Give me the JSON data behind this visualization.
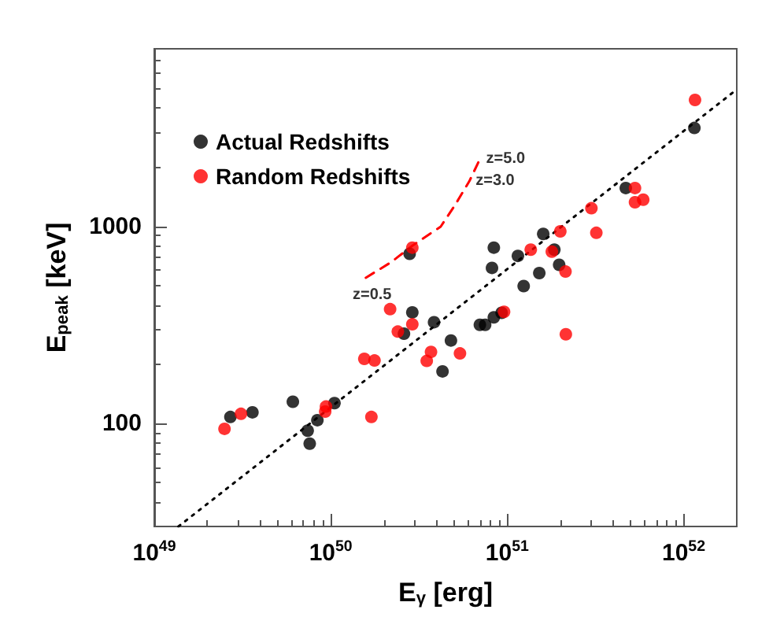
{
  "chart_data": {
    "type": "scatter",
    "xlabel": "E$_{γ}$ [erg]",
    "ylabel": "E$_{peak}$ [keV]",
    "log": "xy",
    "grid": false,
    "legend": "top left",
    "marker": "circle",
    "xlim": [
      1e+49,
      2e+52
    ],
    "ylim": [
      30,
      8000
    ],
    "xticks": [
      {
        "value": 1e+49,
        "label": "10$^{49}$"
      },
      {
        "value": 1e+50,
        "label": "10$^{50}$"
      },
      {
        "value": 1e+51,
        "label": "10$^{51}$"
      },
      {
        "value": 1e+52,
        "label": "10$^{52}$"
      }
    ],
    "yticks": [
      100,
      1000
    ],
    "annotations": [
      {
        "text": "z=0.5",
        "x": 1.58e+50,
        "y": 550
      },
      {
        "text": "z=3.0",
        "x": 6.1e+50,
        "y": 1700
      },
      {
        "text": "z=5.0",
        "x": 7e+50,
        "y": 2200
      }
    ],
    "series": [
      {
        "name": "Actual Redshifts",
        "color": "#000000",
        "x": [
          2.7e+49,
          3.6e+49,
          6.1e+49,
          8.4e+49,
          7.4e+49,
          7.6e+49,
          1.05e+50,
          2.9e+50,
          2.6e+50,
          3.85e+50,
          4.8e+50,
          4.3e+50,
          2.8e+50,
          1.15e+52,
          4.7e+51,
          1.6e+51,
          8.4e+50,
          8.2e+50,
          1.15e+51,
          1.85e+51,
          1.97e+51,
          1.52e+51,
          1.24e+51,
          7e+50,
          7.5e+50,
          8.4e+50,
          9.3e+50
        ],
        "values": [
          108,
          114,
          129,
          104,
          92,
          79,
          127,
          367,
          286,
          327,
          264,
          184,
          728,
          3170,
          1570,
          918,
          782,
          617,
          710,
          764,
          640,
          581,
          499,
          317,
          317,
          346,
          365
        ]
      },
      {
        "name": "Random Redshifts",
        "color": "#ff0000",
        "x": [
          2.5e+49,
          3.1e+49,
          9.4e+49,
          9.3e+49,
          1.7e+50,
          1.55e+50,
          1.77e+50,
          2.17e+50,
          2.4e+50,
          2.9e+50,
          3.7e+50,
          3.5e+50,
          5.4e+50,
          2.9e+50,
          1.16e+52,
          5.3e+51,
          5.3e+51,
          5.9e+51,
          3e+51,
          3.2e+51,
          2e+51,
          1.36e+51,
          1.79e+51,
          2.14e+51,
          9.6e+50,
          2.15e+51
        ],
        "values": [
          94,
          112,
          122,
          115,
          108,
          213,
          209,
          381,
          293,
          319,
          231,
          208,
          227,
          782,
          4400,
          1570,
          1330,
          1370,
          1240,
          930,
          946,
          764,
          746,
          591,
          369,
          284
        ]
      },
      {
        "type": "line",
        "color": "#000000",
        "line_style": "dotted",
        "marker": "none",
        "x": [
          1.37e+49,
          1.92e+52
        ],
        "values": [
          30,
          4830
        ]
      },
      {
        "type": "line",
        "color": "#ff0000",
        "line_style": "dashed",
        "marker": "none",
        "x": [
          1.58e+50,
          2.2e+50,
          2.9e+50,
          4.2e+50,
          5.1e+50,
          6.1e+50,
          7e+50
        ],
        "values": [
          550,
          660,
          800,
          1000,
          1300,
          1700,
          2200
        ]
      }
    ]
  }
}
